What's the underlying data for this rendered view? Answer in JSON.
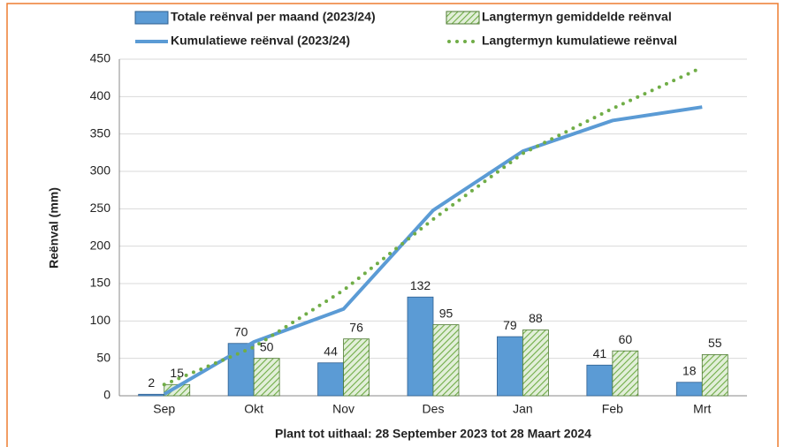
{
  "chart_data": {
    "type": "bar",
    "x_label": "Plant tot uithaal: 28 September 2023 tot 28 Maart 2024",
    "y_label": "Reënval (mm)",
    "categories": [
      "Sep",
      "Okt",
      "Nov",
      "Des",
      "Jan",
      "Feb",
      "Mrt"
    ],
    "series": [
      {
        "name": "Totale reënval per maand (2023/24)",
        "type": "bar",
        "color": "#5b9bd5",
        "values": [
          2,
          70,
          44,
          132,
          79,
          41,
          18
        ]
      },
      {
        "name": "Langtermyn gemiddelde reënval",
        "type": "bar",
        "color": "#70ad47",
        "values": [
          15,
          50,
          76,
          95,
          88,
          60,
          55
        ]
      },
      {
        "name": "Kumulatiewe reënval (2023/24)",
        "type": "line",
        "color": "#5b9bd5",
        "values": [
          2,
          72,
          116,
          248,
          327,
          368,
          386
        ]
      },
      {
        "name": "Langtermyn kumulatiewe reënval",
        "type": "dotted",
        "color": "#70ad47",
        "values": [
          15,
          65,
          141,
          236,
          324,
          384,
          439
        ]
      }
    ],
    "ylim": [
      0,
      450
    ],
    "yticks": [
      0,
      50,
      100,
      150,
      200,
      250,
      300,
      350,
      400,
      450
    ],
    "grid": true
  }
}
